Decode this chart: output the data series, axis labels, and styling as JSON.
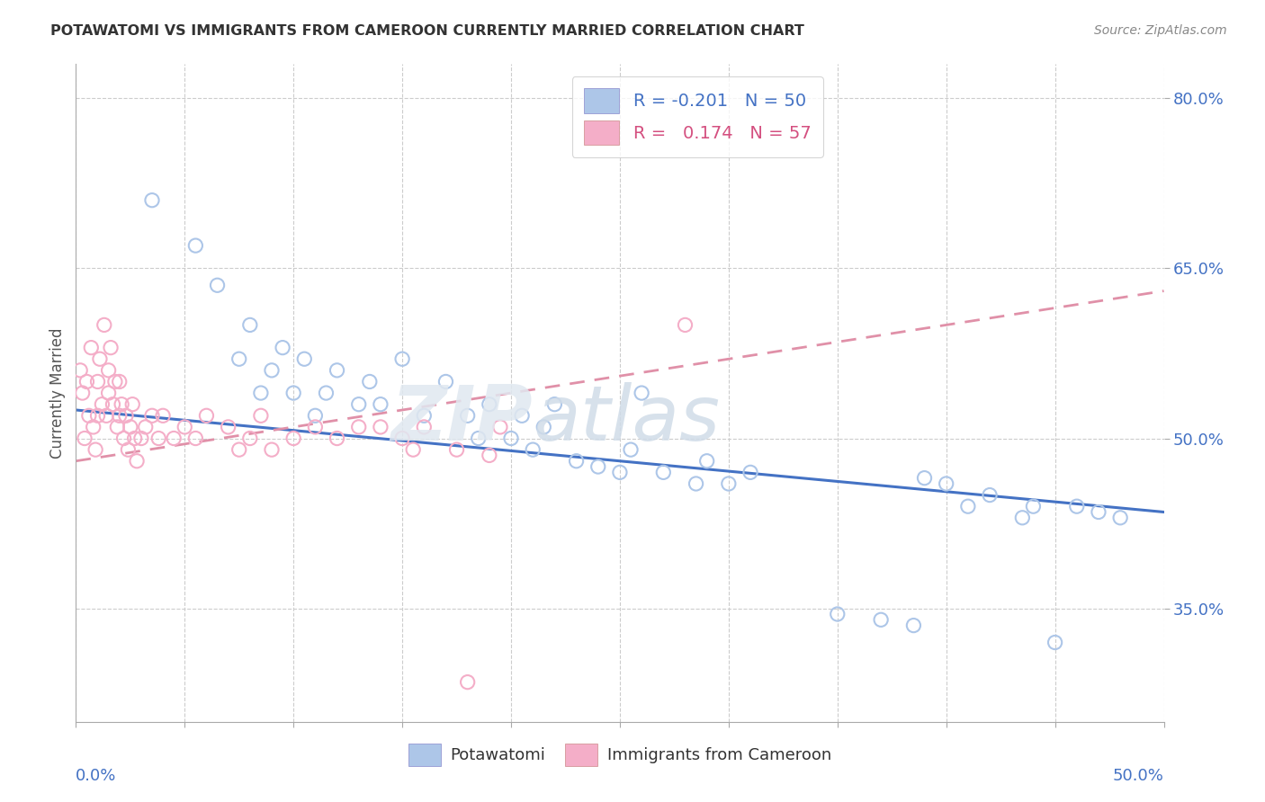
{
  "title": "POTAWATOMI VS IMMIGRANTS FROM CAMEROON CURRENTLY MARRIED CORRELATION CHART",
  "source_text": "Source: ZipAtlas.com",
  "ylabel": "Currently Married",
  "xlim": [
    0.0,
    50.0
  ],
  "ylim": [
    25.0,
    83.0
  ],
  "yticks": [
    35.0,
    50.0,
    65.0,
    80.0
  ],
  "ytick_labels": [
    "35.0%",
    "50.0%",
    "65.0%",
    "80.0%"
  ],
  "color_blue": "#adc6e8",
  "color_pink": "#f4aec8",
  "color_blue_text": "#4472c4",
  "color_pink_text": "#d45080",
  "color_line_blue": "#4472c4",
  "color_line_pink": "#e090a8",
  "blue_x": [
    3.5,
    5.5,
    6.5,
    7.5,
    8.0,
    8.5,
    9.0,
    9.5,
    10.0,
    10.5,
    11.0,
    11.5,
    12.0,
    13.0,
    13.5,
    14.0,
    15.0,
    16.0,
    17.0,
    18.0,
    18.5,
    19.0,
    20.0,
    20.5,
    21.0,
    21.5,
    22.0,
    23.0,
    24.0,
    25.0,
    25.5,
    26.0,
    27.0,
    28.5,
    29.0,
    30.0,
    31.0,
    35.0,
    37.0,
    38.5,
    39.0,
    40.0,
    41.0,
    42.0,
    43.5,
    44.0,
    45.0,
    46.0,
    47.0,
    48.0
  ],
  "blue_y": [
    71.0,
    67.0,
    63.5,
    57.0,
    60.0,
    54.0,
    56.0,
    58.0,
    54.0,
    57.0,
    52.0,
    54.0,
    56.0,
    53.0,
    55.0,
    53.0,
    57.0,
    52.0,
    55.0,
    52.0,
    50.0,
    53.0,
    50.0,
    52.0,
    49.0,
    51.0,
    53.0,
    48.0,
    47.5,
    47.0,
    49.0,
    54.0,
    47.0,
    46.0,
    48.0,
    46.0,
    47.0,
    34.5,
    34.0,
    33.5,
    46.5,
    46.0,
    44.0,
    45.0,
    43.0,
    44.0,
    32.0,
    44.0,
    43.5,
    43.0
  ],
  "pink_x": [
    0.2,
    0.3,
    0.4,
    0.5,
    0.6,
    0.7,
    0.8,
    0.9,
    1.0,
    1.0,
    1.1,
    1.2,
    1.3,
    1.4,
    1.5,
    1.5,
    1.6,
    1.7,
    1.8,
    1.9,
    2.0,
    2.0,
    2.1,
    2.2,
    2.3,
    2.4,
    2.5,
    2.6,
    2.7,
    2.8,
    3.0,
    3.2,
    3.5,
    3.8,
    4.0,
    4.5,
    5.0,
    5.5,
    6.0,
    7.0,
    7.5,
    8.0,
    8.5,
    9.0,
    10.0,
    11.0,
    12.0,
    13.0,
    14.0,
    15.0,
    15.5,
    16.0,
    17.5,
    18.0,
    19.0,
    19.5,
    28.0
  ],
  "pink_y": [
    56.0,
    54.0,
    50.0,
    55.0,
    52.0,
    58.0,
    51.0,
    49.0,
    55.0,
    52.0,
    57.0,
    53.0,
    60.0,
    52.0,
    56.0,
    54.0,
    58.0,
    53.0,
    55.0,
    51.0,
    52.0,
    55.0,
    53.0,
    50.0,
    52.0,
    49.0,
    51.0,
    53.0,
    50.0,
    48.0,
    50.0,
    51.0,
    52.0,
    50.0,
    52.0,
    50.0,
    51.0,
    50.0,
    52.0,
    51.0,
    49.0,
    50.0,
    52.0,
    49.0,
    50.0,
    51.0,
    50.0,
    51.0,
    51.0,
    50.0,
    49.0,
    51.0,
    49.0,
    28.5,
    48.5,
    51.0,
    60.0
  ],
  "blue_trendline_x": [
    0.0,
    50.0
  ],
  "blue_trendline_y": [
    52.5,
    43.5
  ],
  "pink_trendline_x": [
    0.0,
    50.0
  ],
  "pink_trendline_y": [
    48.0,
    63.0
  ]
}
